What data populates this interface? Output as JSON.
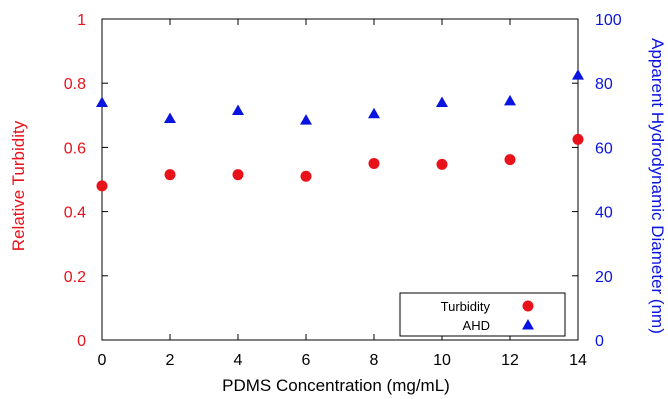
{
  "chart_data": {
    "type": "scatter",
    "xlabel": "PDMS Concentration (mg/mL)",
    "ylabel_left": "Relative Turbidity",
    "ylabel_right": "Apparent Hydrodynamic Diameter (nm)",
    "xlim": [
      0,
      14
    ],
    "ylim_left": [
      0,
      1
    ],
    "ylim_right": [
      0,
      100
    ],
    "x_ticks": [
      "0",
      "2",
      "4",
      "6",
      "8",
      "10",
      "12",
      "14"
    ],
    "y_left_ticks": [
      "0",
      "0.2",
      "0.4",
      "0.6",
      "0.8",
      "1"
    ],
    "y_right_ticks": [
      "0",
      "20",
      "40",
      "60",
      "80",
      "100"
    ],
    "grid": false,
    "legend_position": "bottom-right",
    "series": [
      {
        "name": "Turbidity",
        "axis": "left",
        "marker": "circle",
        "color": "#e8121b",
        "x": [
          0,
          2,
          4,
          6,
          8,
          10,
          12,
          14
        ],
        "y": [
          0.48,
          0.515,
          0.515,
          0.51,
          0.55,
          0.547,
          0.562,
          0.625
        ]
      },
      {
        "name": "AHD",
        "axis": "right",
        "marker": "triangle",
        "color": "#0a14e0",
        "x": [
          0,
          2,
          4,
          6,
          8,
          10,
          12,
          14
        ],
        "y": [
          74,
          69,
          71.5,
          68.5,
          70.5,
          74,
          74.5,
          82.5
        ]
      }
    ]
  }
}
